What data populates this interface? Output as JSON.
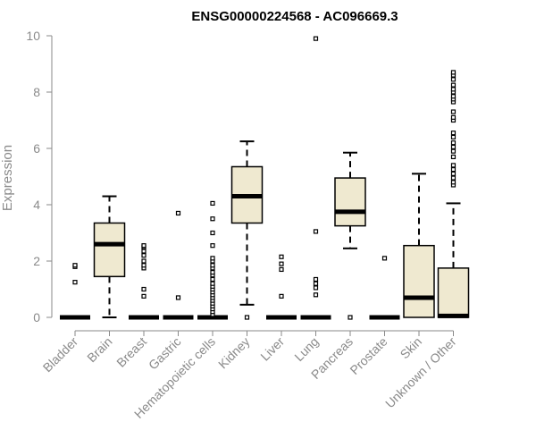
{
  "chart_data": {
    "type": "box",
    "title": "ENSG00000224568 - AC096669.3",
    "xlabel": "",
    "ylabel": "Expression",
    "ylim": [
      0,
      10
    ],
    "yticks": [
      0,
      2,
      4,
      6,
      8,
      10
    ],
    "grid": false,
    "colors": {
      "box_fill": "#efe9d0",
      "box_stroke": "#000000",
      "axis": "#8a8a8a"
    },
    "categories": [
      "Bladder",
      "Brain",
      "Breast",
      "Gastric",
      "Hematopoietic cells",
      "Kidney",
      "Liver",
      "Lung",
      "Pancreas",
      "Prostate",
      "Skin",
      "Unknown / Other"
    ],
    "boxes": [
      {
        "category": "Bladder",
        "min": 0,
        "q1": 0,
        "median": 0,
        "q3": 0,
        "max": 0,
        "outliers": [
          1.25,
          1.8,
          1.85
        ]
      },
      {
        "category": "Brain",
        "min": 0,
        "q1": 1.45,
        "median": 2.6,
        "q3": 3.35,
        "max": 4.3,
        "outliers": []
      },
      {
        "category": "Breast",
        "min": 0,
        "q1": 0,
        "median": 0,
        "q3": 0,
        "max": 0,
        "outliers": [
          0.75,
          1.0,
          1.75,
          1.85,
          2.0,
          2.2,
          2.35,
          2.5,
          2.55
        ]
      },
      {
        "category": "Gastric",
        "min": 0,
        "q1": 0,
        "median": 0,
        "q3": 0,
        "max": 0,
        "outliers": [
          0.7,
          3.7
        ]
      },
      {
        "category": "Hematopoietic cells",
        "min": 0,
        "q1": 0,
        "median": 0,
        "q3": 0,
        "max": 0,
        "outliers": [
          0.1,
          0.2,
          0.3,
          0.4,
          0.5,
          0.6,
          0.7,
          0.8,
          0.9,
          1.0,
          1.1,
          1.2,
          1.35,
          1.5,
          1.6,
          1.75,
          1.85,
          2.0,
          2.1,
          2.55,
          3.0,
          3.5,
          4.05
        ]
      },
      {
        "category": "Kidney",
        "min": 0.45,
        "q1": 3.35,
        "median": 4.3,
        "q3": 5.35,
        "max": 6.25,
        "outliers": [
          0
        ]
      },
      {
        "category": "Liver",
        "min": 0,
        "q1": 0,
        "median": 0,
        "q3": 0,
        "max": 0,
        "outliers": [
          0.75,
          1.7,
          1.9,
          2.15
        ]
      },
      {
        "category": "Lung",
        "min": 0,
        "q1": 0,
        "median": 0,
        "q3": 0,
        "max": 0,
        "outliers": [
          0.8,
          1.05,
          1.2,
          1.35,
          3.05,
          9.9
        ]
      },
      {
        "category": "Pancreas",
        "min": 2.45,
        "q1": 3.25,
        "median": 3.75,
        "q3": 4.95,
        "max": 5.85,
        "outliers": [
          0
        ]
      },
      {
        "category": "Prostate",
        "min": 0,
        "q1": 0,
        "median": 0,
        "q3": 0,
        "max": 0,
        "outliers": [
          2.1
        ]
      },
      {
        "category": "Skin",
        "min": 0,
        "q1": 0,
        "median": 0.7,
        "q3": 2.55,
        "max": 5.1,
        "outliers": []
      },
      {
        "category": "Unknown / Other",
        "min": 0,
        "q1": 0,
        "median": 0.05,
        "q3": 1.75,
        "max": 4.05,
        "outliers": [
          4.7,
          4.8,
          4.95,
          5.1,
          5.25,
          5.4,
          5.7,
          5.9,
          6.05,
          6.2,
          6.4,
          6.55,
          7.0,
          7.1,
          7.3,
          7.65,
          7.75,
          7.85,
          8.0,
          8.1,
          8.25,
          8.45,
          8.6,
          8.7
        ]
      }
    ]
  }
}
